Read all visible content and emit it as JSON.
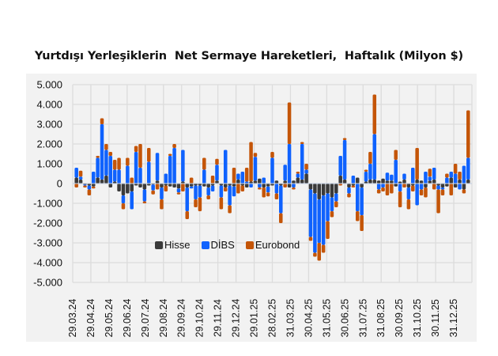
{
  "chart_data": {
    "type": "bar",
    "stacked": true,
    "title": "Yurtdışı Yerleşiklerin  Net Sermaye Hareketleri,  Haftalık (Milyon $)",
    "xlabel": "",
    "ylabel": "",
    "ylim": [
      -5000,
      5000
    ],
    "yticks": [
      5000,
      4000,
      3000,
      2000,
      1000,
      0,
      -1000,
      -2000,
      -3000,
      -4000,
      -5000
    ],
    "ytick_labels": [
      "5.000",
      "4.000",
      "3.000",
      "2.000",
      "1.000",
      "0",
      "-1.000",
      "-2.000",
      "-3.000",
      "-4.000",
      "-5.000"
    ],
    "xtick_labels": [
      "29.03.24",
      "29.04.24",
      "29.05.24",
      "29.06.24",
      "29.07.24",
      "29.08.24",
      "29.09.24",
      "29.10.24",
      "29.11.24",
      "29.12.24",
      "29.01.25",
      "28.02.25",
      "31.03.25",
      "30.04.25",
      "31.05.25",
      "30.06.25",
      "31.07.25",
      "31.08.25",
      "30.09.25",
      "31.10.25",
      "30.11.25",
      "31.12.25"
    ],
    "grid": true,
    "legend_position": "inside-lower-left",
    "colors": {
      "Hisse": "#3a3a3a",
      "DİBS": "#0f62fe",
      "Eurobond": "#c45508"
    },
    "series": [
      {
        "name": "Hisse",
        "values": [
          300,
          200,
          -50,
          -100,
          -150,
          300,
          200,
          400,
          -200,
          100,
          -400,
          -600,
          -500,
          -400,
          -100,
          -200,
          -300,
          -100,
          -50,
          150,
          -200,
          -100,
          -150,
          -200,
          -250,
          100,
          -200,
          -150,
          -100,
          -100,
          -150,
          -200,
          -100,
          150,
          -100,
          -200,
          -100,
          -150,
          200,
          -100,
          -200,
          100,
          150,
          250,
          -200,
          -150,
          -100,
          150,
          -100,
          150,
          -200,
          150,
          300,
          200,
          500,
          -300,
          -500,
          -800,
          -600,
          -500,
          -700,
          -500,
          400,
          200,
          -200,
          -100,
          300,
          -200,
          100,
          200,
          200,
          150,
          250,
          150,
          150,
          -150,
          100,
          200,
          -200,
          -100,
          200,
          150,
          -200,
          150,
          200,
          -100,
          -200,
          -150,
          300,
          -200,
          200,
          -300,
          200
        ],
        "note": "approximate, estimated from pixels"
      },
      {
        "name": "DİBS",
        "values": [
          500,
          150,
          -50,
          -200,
          600,
          1000,
          2800,
          1300,
          1400,
          600,
          700,
          -400,
          900,
          -900,
          1600,
          800,
          -600,
          1100,
          -300,
          1400,
          -600,
          500,
          1400,
          1800,
          -200,
          1600,
          -1200,
          -100,
          -700,
          -600,
          700,
          -400,
          -300,
          800,
          -600,
          1700,
          -1000,
          -500,
          300,
          600,
          100,
          -200,
          1200,
          -200,
          300,
          -300,
          1300,
          -500,
          -1400,
          800,
          2000,
          -200,
          200,
          1800,
          200,
          -2400,
          -3000,
          -2200,
          -2500,
          -1400,
          -700,
          -400,
          1000,
          2000,
          -300,
          400,
          -1400,
          -1400,
          500,
          800,
          2300,
          -300,
          -200,
          400,
          300,
          1200,
          -400,
          300,
          -600,
          800,
          -1100,
          -300,
          600,
          200,
          600,
          -200,
          -100,
          300,
          300,
          500,
          -300,
          900,
          1100
        ],
        "note": "approximate, estimated from pixels"
      },
      {
        "name": "Eurobond",
        "values": [
          -200,
          300,
          -100,
          -300,
          -100,
          100,
          300,
          300,
          200,
          500,
          600,
          -300,
          400,
          300,
          300,
          1200,
          -100,
          700,
          -200,
          -300,
          -500,
          -300,
          100,
          200,
          -100,
          -400,
          -400,
          300,
          -400,
          -700,
          600,
          -200,
          400,
          300,
          -600,
          -200,
          -400,
          800,
          -500,
          -300,
          700,
          2000,
          200,
          -100,
          -500,
          -200,
          300,
          -300,
          -500,
          -200,
          2100,
          -100,
          100,
          100,
          300,
          -200,
          -200,
          -900,
          -400,
          -900,
          -300,
          -300,
          -100,
          100,
          -200,
          -100,
          -500,
          -800,
          100,
          600,
          2000,
          -200,
          -200,
          -600,
          -500,
          500,
          -800,
          -200,
          -500,
          -300,
          1600,
          -300,
          -500,
          400,
          -300,
          -1200,
          -300,
          200,
          -600,
          500,
          400,
          -200,
          2400
        ],
        "note": "approximate, estimated from pixels"
      }
    ]
  },
  "legend": {
    "items": [
      {
        "label": "Hisse",
        "color": "#3a3a3a"
      },
      {
        "label": "DİBS",
        "color": "#0f62fe"
      },
      {
        "label": "Eurobond",
        "color": "#c45508"
      }
    ]
  }
}
